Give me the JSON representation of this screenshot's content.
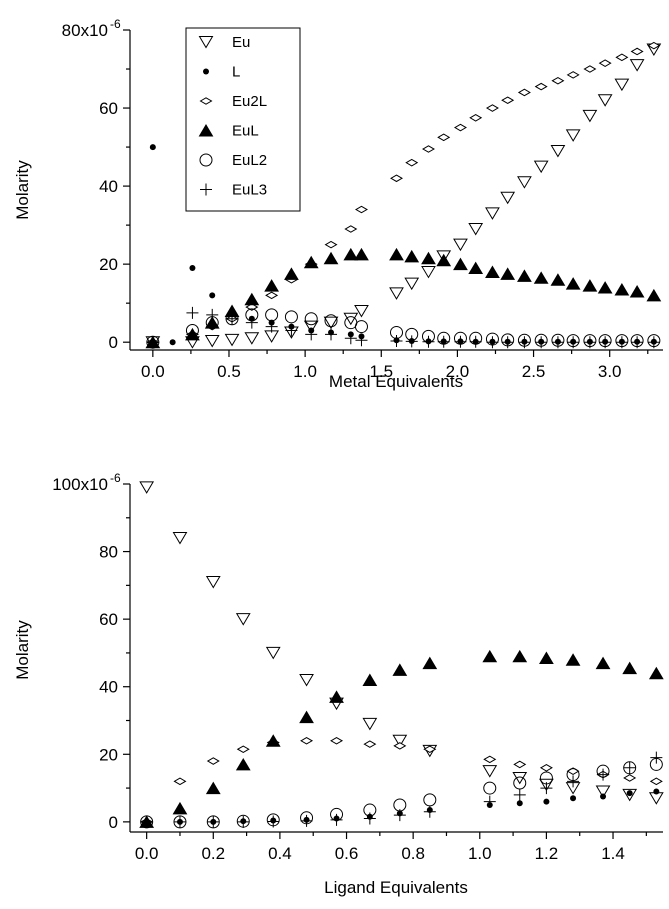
{
  "chart_data": [
    {
      "type": "scatter",
      "xlabel": "Metal Equivalents",
      "ylabel": "Molarity",
      "xlim": [
        -0.15,
        3.35
      ],
      "ylim": [
        -2,
        80
      ],
      "xticks": [
        "0.0",
        "0.5",
        "1.0",
        "1.5",
        "2.0",
        "2.5",
        "3.0"
      ],
      "xtick_values": [
        0,
        0.5,
        1.0,
        1.5,
        2.0,
        2.5,
        3.0
      ],
      "yticks": [
        "0",
        "20",
        "40",
        "60",
        "80x10"
      ],
      "ytick_values": [
        0,
        20,
        40,
        60,
        80
      ],
      "ytick_exponent": "-6",
      "legend": {
        "placement": "top-left",
        "entries": [
          "Eu",
          "L",
          "Eu2L",
          "EuL",
          "EuL2",
          "EuL3"
        ]
      },
      "series": [
        {
          "name": "Eu",
          "marker": "triangle-down-open",
          "x": [
            0.0,
            0.26,
            0.39,
            0.52,
            0.65,
            0.78,
            0.91,
            1.04,
            1.17,
            1.3,
            1.37,
            1.6,
            1.7,
            1.81,
            1.91,
            2.02,
            2.12,
            2.23,
            2.33,
            2.44,
            2.55,
            2.66,
            2.76,
            2.87,
            2.97,
            3.08,
            3.18,
            3.29
          ],
          "y": [
            0,
            0,
            0.3,
            0.6,
            1,
            1.5,
            2.5,
            4,
            5,
            6,
            8,
            12.5,
            15,
            18,
            22,
            25,
            29,
            33,
            37,
            41,
            45,
            49,
            53,
            58,
            62,
            66,
            71,
            75
          ]
        },
        {
          "name": "L",
          "marker": "dot",
          "x": [
            0.0,
            0.13,
            0.26,
            0.39,
            0.52,
            0.65,
            0.78,
            0.91,
            1.04,
            1.17,
            1.3,
            1.37,
            1.6,
            1.7,
            1.81,
            1.91,
            2.02,
            2.12,
            2.23,
            2.33,
            2.44,
            2.55,
            2.66,
            2.76,
            2.87,
            2.97,
            3.08,
            3.18,
            3.29
          ],
          "y": [
            50,
            0,
            19,
            12,
            8,
            6,
            5,
            4,
            3,
            2.5,
            2,
            1.5,
            0.5,
            0.3,
            0.2,
            0.2,
            0.2,
            0.1,
            0.1,
            0.1,
            0.1,
            0.1,
            0.1,
            0.1,
            0.1,
            0.1,
            0.1,
            0.1,
            0.1
          ]
        },
        {
          "name": "Eu2L",
          "marker": "diamond-open",
          "x": [
            0.0,
            0.26,
            0.39,
            0.52,
            0.65,
            0.78,
            0.91,
            1.04,
            1.17,
            1.3,
            1.37,
            1.6,
            1.7,
            1.81,
            1.91,
            2.02,
            2.12,
            2.23,
            2.33,
            2.44,
            2.55,
            2.66,
            2.76,
            2.87,
            2.97,
            3.08,
            3.18,
            3.29
          ],
          "y": [
            0,
            2,
            4,
            6,
            9,
            12,
            16,
            20,
            25,
            29,
            34,
            42,
            46,
            49.5,
            52.5,
            55,
            57.5,
            60,
            62,
            64,
            65.5,
            67,
            68.5,
            70,
            71.5,
            73,
            74.5,
            76
          ]
        },
        {
          "name": "EuL",
          "marker": "triangle-up-filled",
          "x": [
            0.0,
            0.26,
            0.39,
            0.52,
            0.65,
            0.78,
            0.91,
            1.04,
            1.17,
            1.3,
            1.37,
            1.6,
            1.7,
            1.81,
            1.91,
            2.02,
            2.12,
            2.23,
            2.33,
            2.44,
            2.55,
            2.66,
            2.76,
            2.87,
            2.97,
            3.08,
            3.18,
            3.29
          ],
          "y": [
            0,
            2,
            5,
            8,
            11,
            14.5,
            17.5,
            20.5,
            21.5,
            22.5,
            22.5,
            22.5,
            22,
            21.5,
            21,
            20,
            19,
            18,
            17.5,
            17,
            16.5,
            16,
            15,
            14.5,
            14,
            13.5,
            13,
            12
          ]
        },
        {
          "name": "EuL2",
          "marker": "circle-open",
          "x": [
            0.0,
            0.26,
            0.39,
            0.52,
            0.65,
            0.78,
            0.91,
            1.04,
            1.17,
            1.3,
            1.37,
            1.6,
            1.7,
            1.81,
            1.91,
            2.02,
            2.12,
            2.23,
            2.33,
            2.44,
            2.55,
            2.66,
            2.76,
            2.87,
            2.97,
            3.08,
            3.18,
            3.29
          ],
          "y": [
            0,
            3,
            5,
            6,
            7,
            7,
            6.5,
            6,
            5.5,
            5,
            4,
            2.5,
            2,
            1.5,
            1,
            1,
            1,
            0.8,
            0.6,
            0.5,
            0.5,
            0.5,
            0.4,
            0.4,
            0.4,
            0.4,
            0.4,
            0.4
          ]
        },
        {
          "name": "EuL3",
          "marker": "plus",
          "x": [
            0.0,
            0.26,
            0.39,
            0.52,
            0.65,
            0.78,
            0.91,
            1.04,
            1.17,
            1.3,
            1.37,
            1.6,
            1.7,
            1.81,
            1.91,
            2.02,
            2.12,
            2.23,
            2.33,
            2.44,
            2.55,
            2.66,
            2.76,
            2.87,
            2.97,
            3.08,
            3.18,
            3.29
          ],
          "y": [
            0,
            7.5,
            7,
            6,
            5,
            4,
            3,
            2,
            2,
            1,
            0.5,
            0.3,
            0.2,
            0.1,
            0.1,
            0.1,
            0.1,
            0,
            0,
            0,
            0,
            0,
            0,
            0,
            0,
            0,
            0,
            0
          ]
        }
      ]
    },
    {
      "type": "scatter",
      "xlabel": "Ligand Equivalents",
      "ylabel": "Molarity",
      "xlim": [
        -0.05,
        1.55
      ],
      "ylim": [
        -3,
        100
      ],
      "xticks": [
        "0.0",
        "0.2",
        "0.4",
        "0.6",
        "0.8",
        "1.0",
        "1.2",
        "1.4"
      ],
      "xtick_values": [
        0,
        0.2,
        0.4,
        0.6,
        0.8,
        1.0,
        1.2,
        1.4
      ],
      "yticks": [
        "0",
        "20",
        "40",
        "60",
        "80",
        "100x10"
      ],
      "ytick_values": [
        0,
        20,
        40,
        60,
        80,
        100
      ],
      "ytick_exponent": "-6",
      "series": [
        {
          "name": "Eu",
          "marker": "triangle-down-open",
          "x": [
            0.0,
            0.1,
            0.2,
            0.29,
            0.38,
            0.48,
            0.57,
            0.67,
            0.76,
            0.85,
            1.03,
            1.12,
            1.2,
            1.28,
            1.37,
            1.45,
            1.53
          ],
          "y": [
            99,
            84,
            71,
            60,
            50,
            42,
            35,
            29,
            24,
            21,
            15,
            13,
            11,
            10,
            9,
            8,
            7
          ]
        },
        {
          "name": "L",
          "marker": "dot",
          "x": [
            0.0,
            0.1,
            0.2,
            0.29,
            0.38,
            0.48,
            0.57,
            0.67,
            0.76,
            0.85,
            1.03,
            1.12,
            1.2,
            1.28,
            1.37,
            1.45,
            1.53
          ],
          "y": [
            0,
            0,
            0,
            0.2,
            0.4,
            0.6,
            1,
            1.5,
            2.5,
            3.5,
            5,
            5.5,
            6,
            7,
            7.5,
            8.5,
            9
          ]
        },
        {
          "name": "Eu2L",
          "marker": "diamond-open",
          "x": [
            0.0,
            0.1,
            0.2,
            0.29,
            0.38,
            0.48,
            0.57,
            0.67,
            0.76,
            0.85,
            1.03,
            1.12,
            1.2,
            1.28,
            1.37,
            1.45,
            1.53
          ],
          "y": [
            0,
            12,
            18,
            21.5,
            23.5,
            24,
            24,
            23,
            22.5,
            21.5,
            18.5,
            17,
            16,
            15,
            14,
            13,
            12
          ]
        },
        {
          "name": "EuL",
          "marker": "triangle-up-filled",
          "x": [
            0.0,
            0.1,
            0.2,
            0.29,
            0.38,
            0.48,
            0.57,
            0.67,
            0.76,
            0.85,
            1.03,
            1.12,
            1.2,
            1.28,
            1.37,
            1.45,
            1.53
          ],
          "y": [
            0,
            4,
            10,
            17,
            24,
            31,
            37,
            42,
            45,
            47,
            49,
            49,
            48.5,
            48,
            47,
            45.5,
            44
          ]
        },
        {
          "name": "EuL2",
          "marker": "circle-open",
          "x": [
            0.0,
            0.1,
            0.2,
            0.29,
            0.38,
            0.48,
            0.57,
            0.67,
            0.76,
            0.85,
            1.03,
            1.12,
            1.2,
            1.28,
            1.37,
            1.45,
            1.53
          ],
          "y": [
            0,
            0,
            0,
            0.2,
            0.6,
            1.2,
            2.2,
            3.5,
            5,
            6.5,
            10,
            11.5,
            13,
            14,
            15,
            16,
            17
          ]
        },
        {
          "name": "EuL3",
          "marker": "plus",
          "x": [
            0.0,
            0.1,
            0.2,
            0.29,
            0.38,
            0.48,
            0.57,
            0.67,
            0.76,
            0.85,
            1.03,
            1.12,
            1.2,
            1.28,
            1.37,
            1.45,
            1.53
          ],
          "y": [
            0,
            0,
            0,
            0,
            0.1,
            0.3,
            0.6,
            1,
            2,
            3,
            6,
            8,
            10,
            12,
            14,
            16,
            19
          ]
        }
      ]
    }
  ]
}
